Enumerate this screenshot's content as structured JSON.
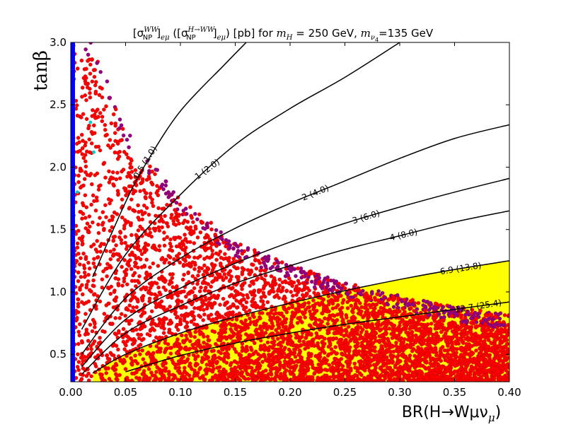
{
  "chart_data": {
    "type": "scatter",
    "title": {
      "part1": "[σ",
      "part1_sub": "NP",
      "part1_sup": "WW",
      "part1_after": "]",
      "part1_sub2": "eμ",
      "part2": " ([σ",
      "part2_sub": "NP",
      "part2_sup": "H→WW",
      "part2_after": "]",
      "part2_sub2": "eμ",
      "part3": ") [pb] for ",
      "mh_symbol": "m",
      "mh_sub": "H",
      "mh_value": " = 250 GeV, ",
      "mnu_symbol": "m",
      "mnu_sub": "ν",
      "mnu_sub2": "4",
      "mnu_value": "=135 GeV"
    },
    "xlabel": "BR(H→Wμν",
    "xlabel_sub": "μ",
    "xlabel_close": ")",
    "ylabel": "tanβ",
    "xlim": [
      0.0,
      0.4
    ],
    "ylim": [
      0.28,
      3.0
    ],
    "x_ticks": [
      "0.00",
      "0.05",
      "0.10",
      "0.15",
      "0.20",
      "0.25",
      "0.30",
      "0.35",
      "0.40"
    ],
    "y_ticks": [
      "0.5",
      "1.0",
      "1.5",
      "2.0",
      "2.5",
      "3.0"
    ],
    "grid": false,
    "legend": "none",
    "colors": {
      "scatter_main": "#ff0000",
      "scatter_edge": "#8b008b",
      "low_br_band": "#0000ff",
      "excluded_region": "#ffff00",
      "contour": "#000000",
      "sparse_point": "#00cccc"
    },
    "highlight_region": {
      "description_label": "",
      "bounded_by_contour": "6.9 (13.8)"
    },
    "contours": [
      {
        "label": "0.5 (1.0)",
        "tb_at_x": [
          [
            0.02,
            1.12
          ],
          [
            0.05,
            1.72
          ],
          [
            0.07,
            2.05
          ],
          [
            0.1,
            2.45
          ],
          [
            0.14,
            2.82
          ],
          [
            0.16,
            3.0
          ]
        ]
      },
      {
        "label": "1 (2.0)",
        "tb_at_x": [
          [
            0.01,
            0.7
          ],
          [
            0.05,
            1.3
          ],
          [
            0.1,
            1.78
          ],
          [
            0.15,
            2.18
          ],
          [
            0.2,
            2.47
          ],
          [
            0.25,
            2.72
          ],
          [
            0.3,
            3.0
          ]
        ]
      },
      {
        "label": "2 (4.0)",
        "tb_at_x": [
          [
            0.01,
            0.5
          ],
          [
            0.05,
            0.95
          ],
          [
            0.1,
            1.27
          ],
          [
            0.15,
            1.51
          ],
          [
            0.2,
            1.71
          ],
          [
            0.25,
            1.89
          ],
          [
            0.3,
            2.07
          ],
          [
            0.35,
            2.23
          ],
          [
            0.4,
            2.34
          ]
        ]
      },
      {
        "label": "3 (6.0)",
        "tb_at_x": [
          [
            0.01,
            0.4
          ],
          [
            0.05,
            0.78
          ],
          [
            0.1,
            1.03
          ],
          [
            0.15,
            1.23
          ],
          [
            0.2,
            1.4
          ],
          [
            0.25,
            1.55
          ],
          [
            0.3,
            1.68
          ],
          [
            0.35,
            1.8
          ],
          [
            0.4,
            1.91
          ]
        ]
      },
      {
        "label": "4 (8.0)",
        "tb_at_x": [
          [
            0.01,
            0.34
          ],
          [
            0.05,
            0.67
          ],
          [
            0.1,
            0.89
          ],
          [
            0.15,
            1.07
          ],
          [
            0.2,
            1.21
          ],
          [
            0.25,
            1.34
          ],
          [
            0.3,
            1.45
          ],
          [
            0.35,
            1.56
          ],
          [
            0.4,
            1.65
          ]
        ]
      },
      {
        "label": "6.9 (13.8)",
        "tb_at_x": [
          [
            0.02,
            0.35
          ],
          [
            0.05,
            0.5
          ],
          [
            0.1,
            0.67
          ],
          [
            0.15,
            0.8
          ],
          [
            0.2,
            0.91
          ],
          [
            0.25,
            1.01
          ],
          [
            0.3,
            1.1
          ],
          [
            0.35,
            1.18
          ],
          [
            0.4,
            1.25
          ]
        ]
      },
      {
        "label": "12.7 (25.4)",
        "tb_at_x": [
          [
            0.05,
            0.36
          ],
          [
            0.1,
            0.49
          ],
          [
            0.15,
            0.59
          ],
          [
            0.2,
            0.67
          ],
          [
            0.25,
            0.74
          ],
          [
            0.3,
            0.8
          ],
          [
            0.35,
            0.86
          ],
          [
            0.4,
            0.92
          ]
        ]
      }
    ],
    "scatter_envelope_upper": [
      [
        0.0,
        3.0
      ],
      [
        0.02,
        3.0
      ],
      [
        0.05,
        2.3
      ],
      [
        0.1,
        1.75
      ],
      [
        0.15,
        1.4
      ],
      [
        0.2,
        1.22
      ],
      [
        0.25,
        1.08
      ],
      [
        0.3,
        0.97
      ],
      [
        0.35,
        0.88
      ],
      [
        0.4,
        0.82
      ]
    ],
    "scatter_lower": 0.28
  }
}
